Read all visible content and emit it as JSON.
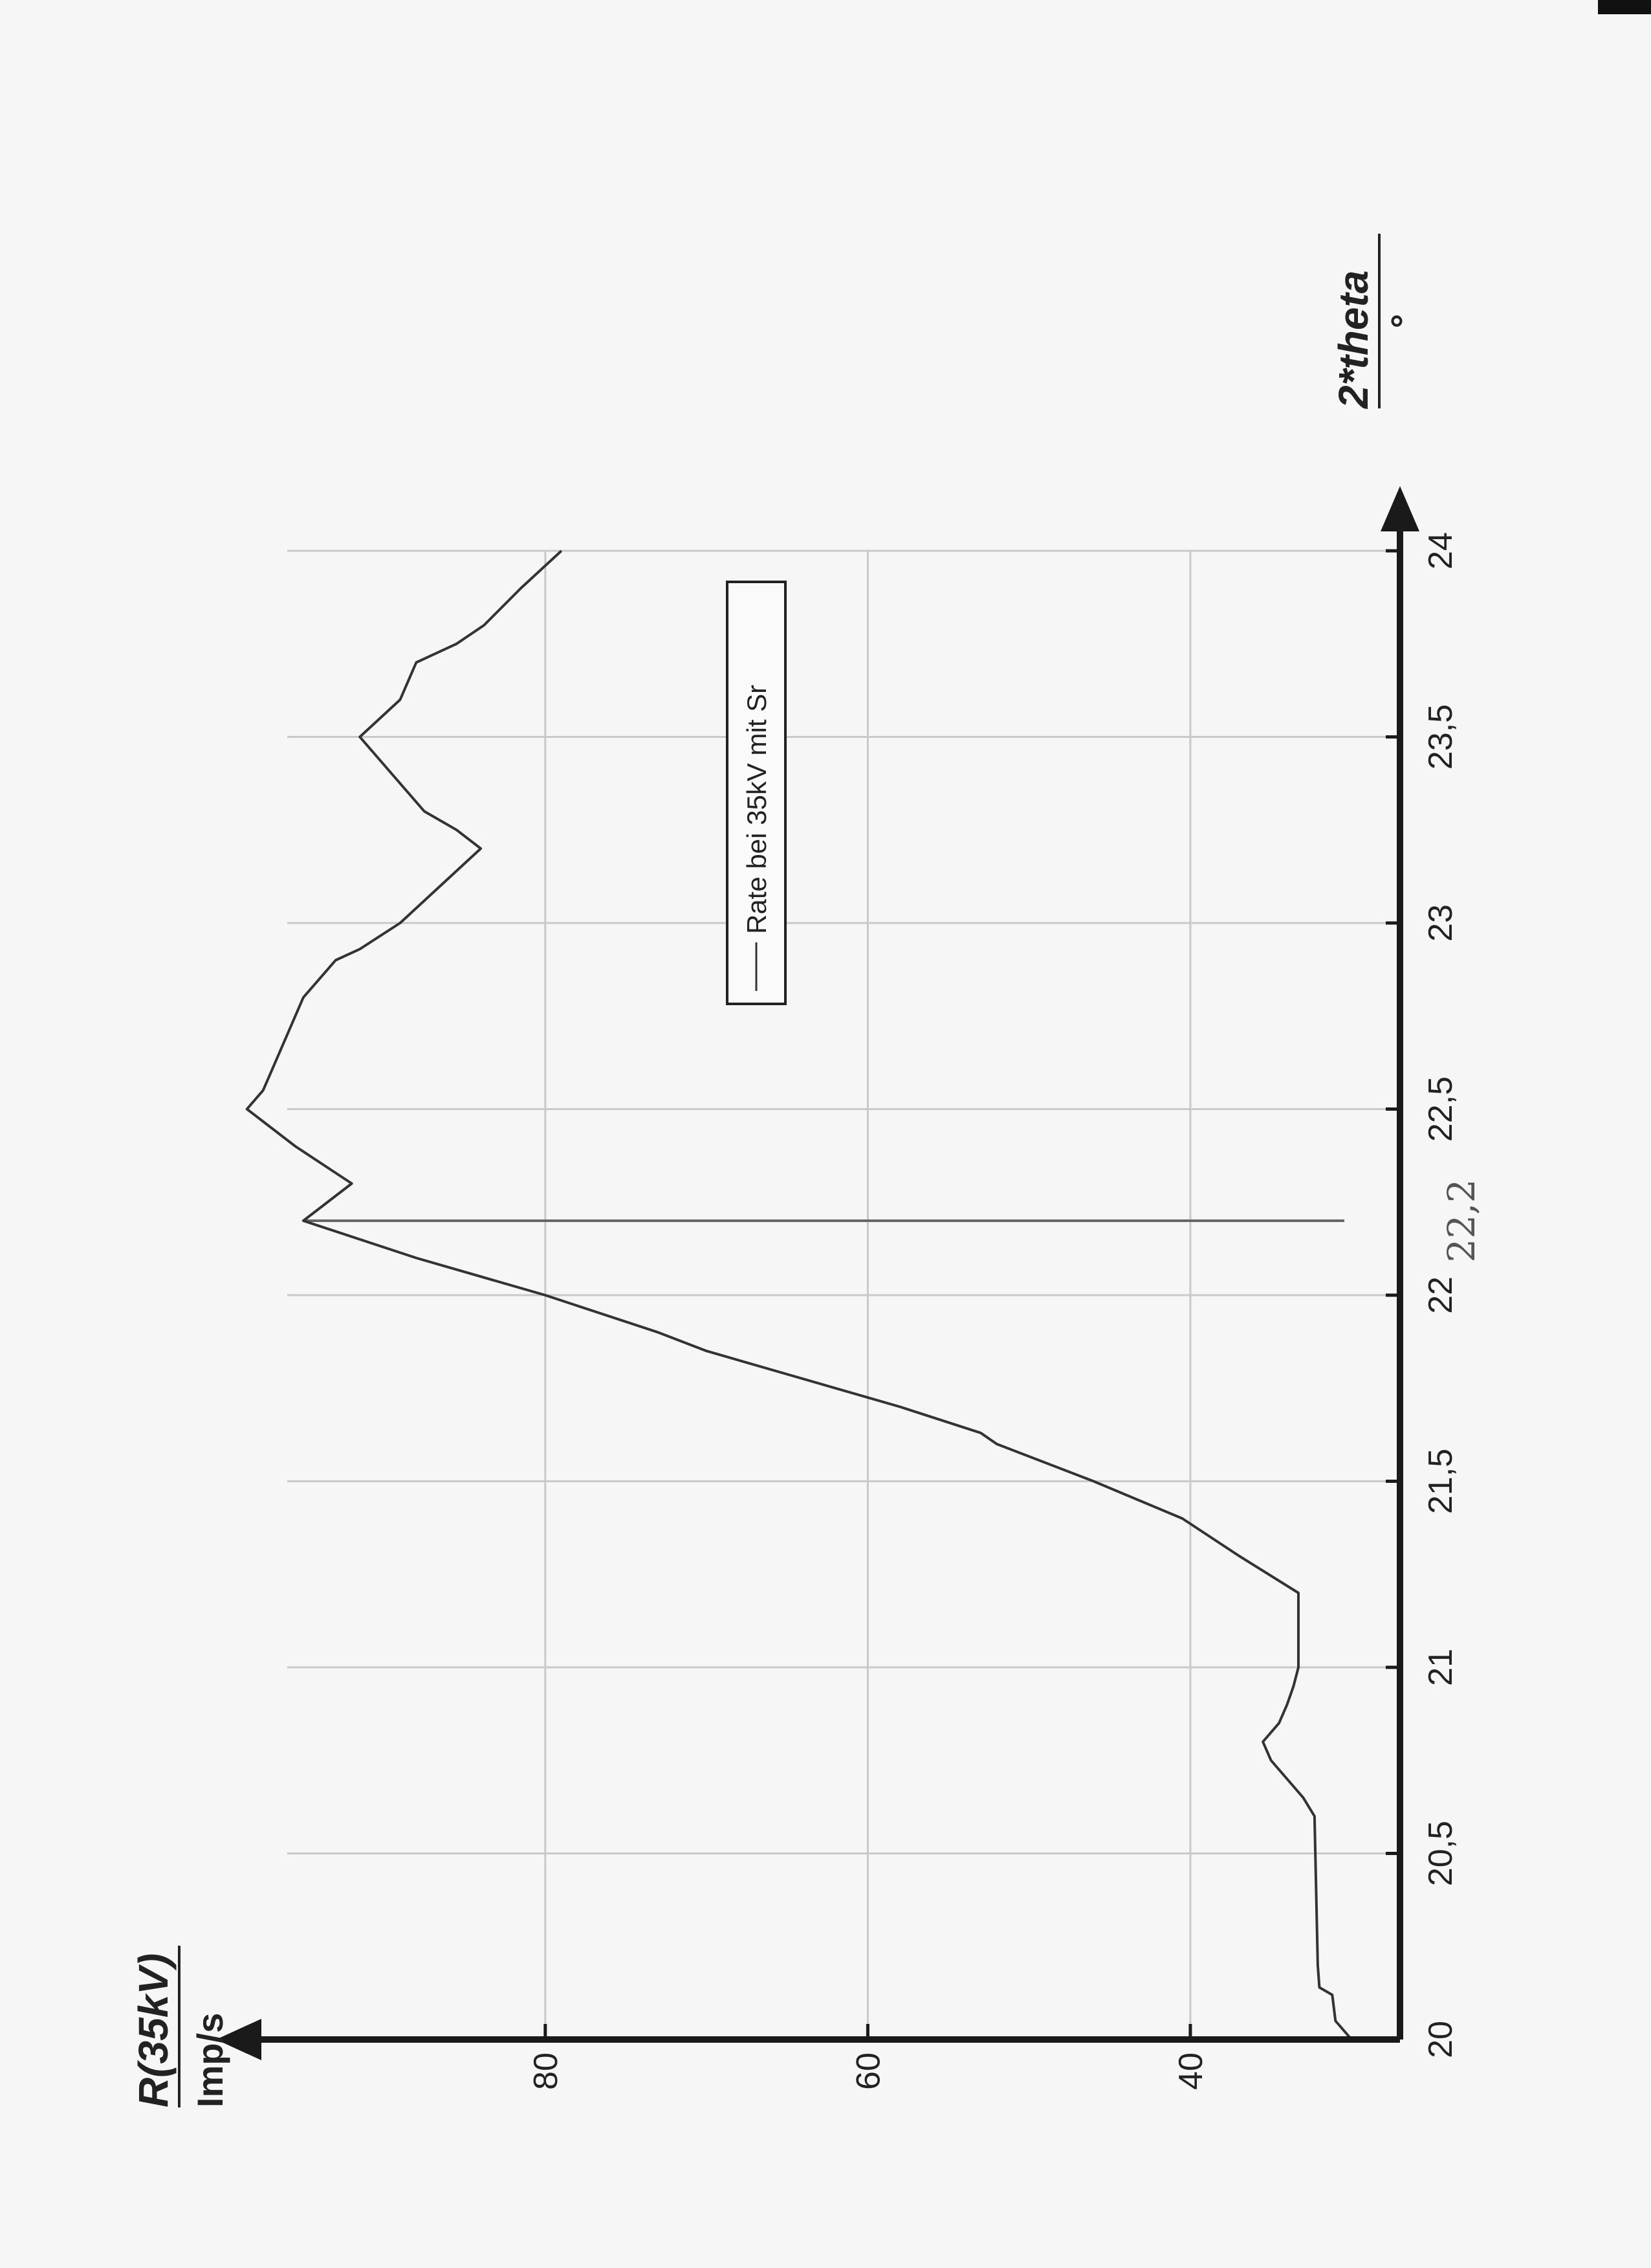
{
  "chart_data": {
    "type": "line",
    "xlabel": "2*theta",
    "xunit": "°",
    "ylabel": "R(35kV)",
    "yunit": "Imp/s",
    "xlim": [
      20,
      24
    ],
    "ylim": [
      27,
      96
    ],
    "x_ticks": [
      "20",
      "20,5",
      "21",
      "21,5",
      "22",
      "22,5",
      "23",
      "23,5",
      "24"
    ],
    "x_tick_values": [
      20,
      20.5,
      21,
      21.5,
      22,
      22.5,
      23,
      23.5,
      24
    ],
    "y_ticks": [
      "40",
      "60",
      "80"
    ],
    "y_tick_values": [
      40,
      60,
      80
    ],
    "grid": true,
    "legend_position": "top-right",
    "series": [
      {
        "name": "Rate bei 35kV mit Sr",
        "color": "#333333",
        "x": [
          20.0,
          20.05,
          20.12,
          20.14,
          20.2,
          20.4,
          20.6,
          20.65,
          20.7,
          20.75,
          20.8,
          20.85,
          20.9,
          20.95,
          21.0,
          21.1,
          21.2,
          21.3,
          21.4,
          21.5,
          21.6,
          21.63,
          21.7,
          21.8,
          21.85,
          21.9,
          22.0,
          22.1,
          22.2,
          22.3,
          22.4,
          22.5,
          22.55,
          22.6,
          22.7,
          22.8,
          22.9,
          22.93,
          23.0,
          23.1,
          23.2,
          23.25,
          23.3,
          23.4,
          23.5,
          23.6,
          23.7,
          23.75,
          23.8,
          23.9,
          24.0
        ],
        "y": [
          30.0,
          31.0,
          31.2,
          32.0,
          32.1,
          32.2,
          32.3,
          33.0,
          34.0,
          35.0,
          35.5,
          34.5,
          34.0,
          33.6,
          33.3,
          33.3,
          33.3,
          37.0,
          40.5,
          46.0,
          52.0,
          53.0,
          58.0,
          66.0,
          70.0,
          73.0,
          80.0,
          88.0,
          95.0,
          92.0,
          95.5,
          98.5,
          97.5,
          97.0,
          96.0,
          95.0,
          93.0,
          91.5,
          89.0,
          86.5,
          84.0,
          85.5,
          87.5,
          89.5,
          91.5,
          89.0,
          88.0,
          85.5,
          83.8,
          81.5,
          79.0
        ]
      }
    ],
    "annotations": [
      {
        "x": 22.2,
        "type": "vertical-line",
        "text": "22,2"
      }
    ]
  }
}
